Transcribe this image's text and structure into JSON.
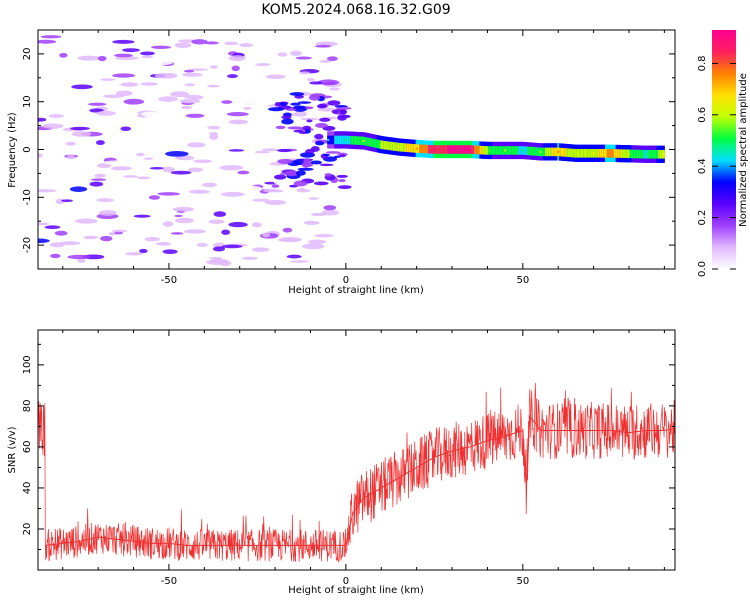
{
  "title": "KOM5.2024.068.16.32.G09",
  "chart_data": [
    {
      "type": "heatmap",
      "xlabel": "Height of straight line (km)",
      "ylabel": "Frequency (Hz)",
      "xlim": [
        -87,
        93
      ],
      "ylim": [
        -25,
        25
      ],
      "x_ticks": [
        -50,
        0,
        50
      ],
      "y_ticks": [
        -20,
        -10,
        0,
        10,
        20
      ],
      "colorbar": {
        "label": "Normalized spectral amplitude",
        "range": [
          0.0,
          0.93
        ],
        "ticks": [
          0.0,
          0.2,
          0.4,
          0.6,
          0.8
        ],
        "colors": [
          "#ffffff",
          "#e0b8ff",
          "#a040ff",
          "#5a00ff",
          "#0000ff",
          "#00e0ff",
          "#00ff40",
          "#c0ff00",
          "#ffe000",
          "#ff8000",
          "#ff2060",
          "#ff0090"
        ]
      },
      "ridge": [
        {
          "x": -5,
          "freq": 2.0,
          "amp": 0.35
        },
        {
          "x": 0,
          "freq": 2.0,
          "amp": 0.45
        },
        {
          "x": 5,
          "freq": 1.8,
          "amp": 0.5
        },
        {
          "x": 10,
          "freq": 1.0,
          "amp": 0.55
        },
        {
          "x": 15,
          "freq": 0.5,
          "amp": 0.6
        },
        {
          "x": 20,
          "freq": 0.2,
          "amp": 0.7
        },
        {
          "x": 25,
          "freq": 0.0,
          "amp": 0.85
        },
        {
          "x": 30,
          "freq": 0.0,
          "amp": 0.9
        },
        {
          "x": 35,
          "freq": 0.0,
          "amp": 0.9
        },
        {
          "x": 40,
          "freq": -0.2,
          "amp": 0.55
        },
        {
          "x": 45,
          "freq": -0.2,
          "amp": 0.5
        },
        {
          "x": 50,
          "freq": -0.2,
          "amp": 0.45
        },
        {
          "x": 55,
          "freq": -0.5,
          "amp": 0.5
        },
        {
          "x": 60,
          "freq": -0.5,
          "amp": 0.7
        },
        {
          "x": 65,
          "freq": -0.8,
          "amp": 0.55
        },
        {
          "x": 70,
          "freq": -0.8,
          "amp": 0.6
        },
        {
          "x": 75,
          "freq": -0.8,
          "amp": 0.75
        },
        {
          "x": 80,
          "freq": -0.9,
          "amp": 0.55
        },
        {
          "x": 85,
          "freq": -1.0,
          "amp": 0.45
        },
        {
          "x": 90,
          "freq": -1.0,
          "amp": 0.6
        }
      ]
    },
    {
      "type": "line",
      "xlabel": "Height of straight line (km)",
      "ylabel": "SNR (v/v)",
      "xlim": [
        -87,
        93
      ],
      "ylim": [
        0,
        117
      ],
      "x_ticks": [
        -50,
        0,
        50
      ],
      "y_ticks": [
        20,
        40,
        60,
        80,
        100
      ],
      "line_color": "#f03030",
      "series": [
        {
          "x": [
            -85,
            -80,
            -75,
            -70,
            -65,
            -60,
            -55,
            -50,
            -45,
            -40,
            -35,
            -30,
            -25,
            -20,
            -15,
            -10,
            -5,
            0,
            2,
            5,
            10,
            15,
            20,
            25,
            30,
            35,
            40,
            45,
            48,
            50,
            51,
            52,
            55,
            60,
            65,
            70,
            75,
            80,
            85,
            90,
            93
          ],
          "y": [
            12,
            13,
            14,
            16,
            15,
            14,
            13,
            13,
            12,
            12,
            12,
            12,
            12,
            12,
            12,
            12,
            12,
            12,
            28,
            35,
            40,
            45,
            50,
            55,
            58,
            60,
            63,
            65,
            67,
            68,
            40,
            75,
            68,
            68,
            68,
            68,
            68,
            67,
            68,
            68,
            69
          ]
        }
      ]
    }
  ]
}
